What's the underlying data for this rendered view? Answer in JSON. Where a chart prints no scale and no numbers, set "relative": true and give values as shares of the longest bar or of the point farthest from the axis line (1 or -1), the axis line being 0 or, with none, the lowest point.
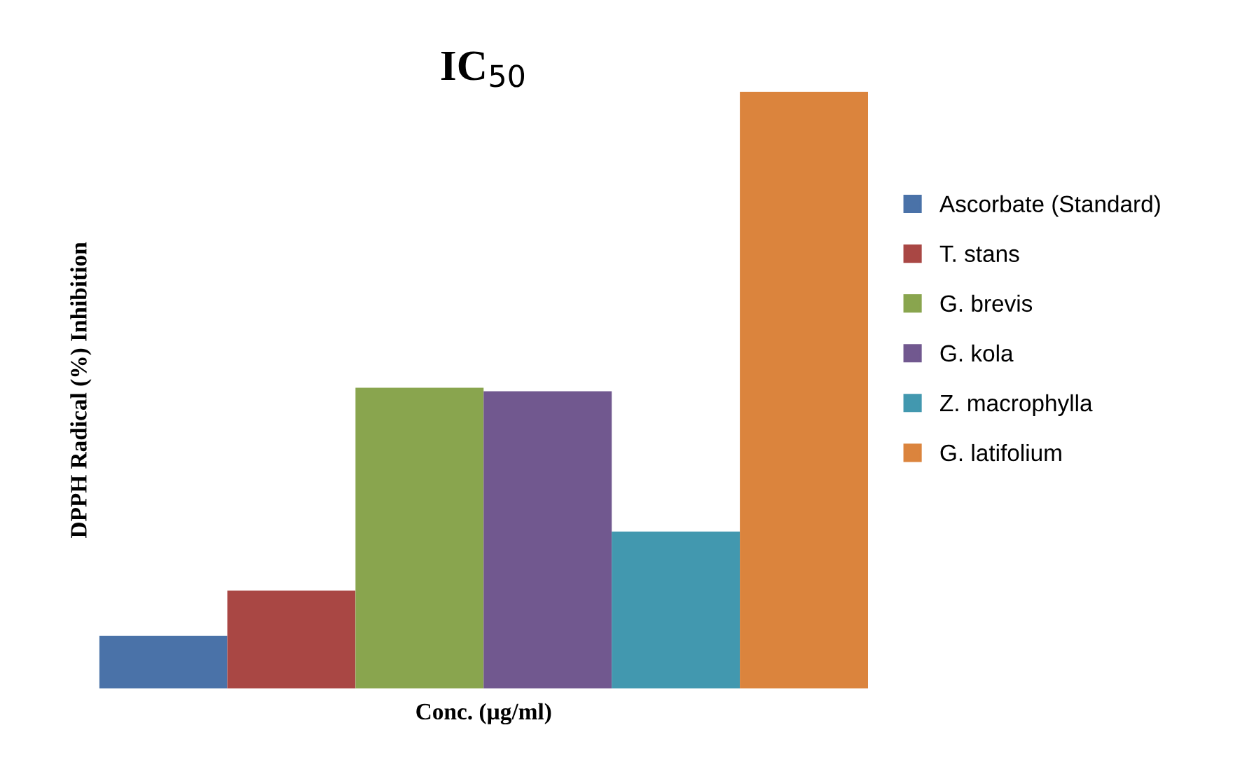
{
  "chart_data": {
    "type": "bar",
    "title": "IC$_{50}$",
    "xlabel": "Conc. (µg/ml)",
    "ylabel": "DPPH Radical (%) Inhibition",
    "relative": true,
    "categories": [
      null
    ],
    "legend": "right",
    "series": [
      {
        "name": "Ascorbate (Standard)",
        "color": "#4a72a8",
        "values": [
          0.088
        ]
      },
      {
        "name": "T. stans",
        "color": "#a94744",
        "values": [
          0.164
        ]
      },
      {
        "name": "G. brevis",
        "color": "#89a54e",
        "values": [
          0.504
        ]
      },
      {
        "name": "G. kola",
        "color": "#71588f",
        "values": [
          0.498
        ]
      },
      {
        "name": "Z. macrophylla",
        "color": "#4298af",
        "values": [
          0.263
        ]
      },
      {
        "name": "G. latifolium",
        "color": "#db843d",
        "values": [
          1
        ]
      }
    ]
  }
}
